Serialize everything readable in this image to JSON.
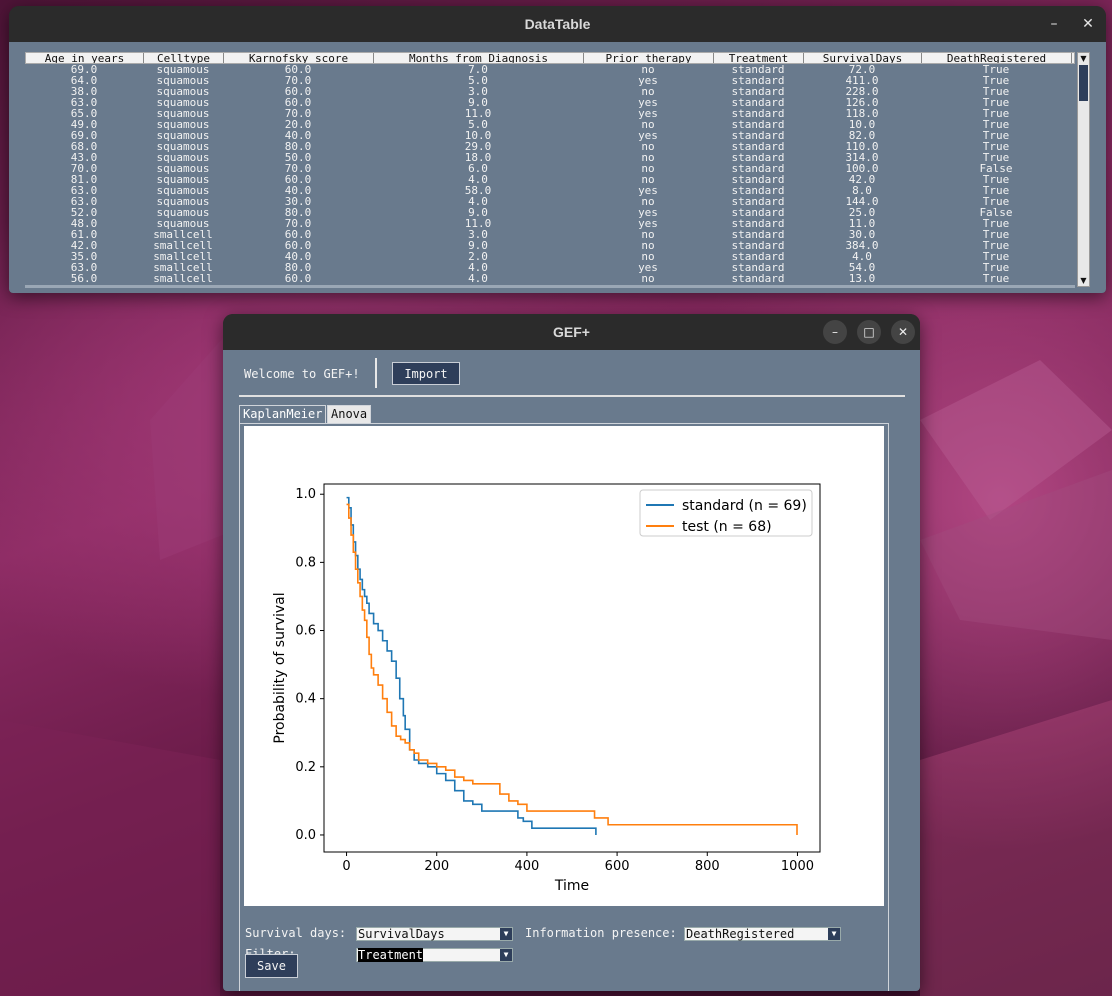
{
  "datatable_window": {
    "title": "DataTable",
    "minimize_label": "–",
    "close_label": "✕",
    "columns": [
      "Age_in_years",
      "Celltype",
      "Karnofsky_score",
      "Months_from_Diagnosis",
      "Prior_therapy",
      "Treatment",
      "SurvivalDays",
      "DeathRegistered"
    ],
    "rows": [
      [
        "69.0",
        "squamous",
        "60.0",
        "7.0",
        "no",
        "standard",
        "72.0",
        "True"
      ],
      [
        "64.0",
        "squamous",
        "70.0",
        "5.0",
        "yes",
        "standard",
        "411.0",
        "True"
      ],
      [
        "38.0",
        "squamous",
        "60.0",
        "3.0",
        "no",
        "standard",
        "228.0",
        "True"
      ],
      [
        "63.0",
        "squamous",
        "60.0",
        "9.0",
        "yes",
        "standard",
        "126.0",
        "True"
      ],
      [
        "65.0",
        "squamous",
        "70.0",
        "11.0",
        "yes",
        "standard",
        "118.0",
        "True"
      ],
      [
        "49.0",
        "squamous",
        "20.0",
        "5.0",
        "no",
        "standard",
        "10.0",
        "True"
      ],
      [
        "69.0",
        "squamous",
        "40.0",
        "10.0",
        "yes",
        "standard",
        "82.0",
        "True"
      ],
      [
        "68.0",
        "squamous",
        "80.0",
        "29.0",
        "no",
        "standard",
        "110.0",
        "True"
      ],
      [
        "43.0",
        "squamous",
        "50.0",
        "18.0",
        "no",
        "standard",
        "314.0",
        "True"
      ],
      [
        "70.0",
        "squamous",
        "70.0",
        "6.0",
        "no",
        "standard",
        "100.0",
        "False"
      ],
      [
        "81.0",
        "squamous",
        "60.0",
        "4.0",
        "no",
        "standard",
        "42.0",
        "True"
      ],
      [
        "63.0",
        "squamous",
        "40.0",
        "58.0",
        "yes",
        "standard",
        "8.0",
        "True"
      ],
      [
        "63.0",
        "squamous",
        "30.0",
        "4.0",
        "no",
        "standard",
        "144.0",
        "True"
      ],
      [
        "52.0",
        "squamous",
        "80.0",
        "9.0",
        "yes",
        "standard",
        "25.0",
        "False"
      ],
      [
        "48.0",
        "squamous",
        "70.0",
        "11.0",
        "yes",
        "standard",
        "11.0",
        "True"
      ],
      [
        "61.0",
        "smallcell",
        "60.0",
        "3.0",
        "no",
        "standard",
        "30.0",
        "True"
      ],
      [
        "42.0",
        "smallcell",
        "60.0",
        "9.0",
        "no",
        "standard",
        "384.0",
        "True"
      ],
      [
        "35.0",
        "smallcell",
        "40.0",
        "2.0",
        "no",
        "standard",
        "4.0",
        "True"
      ],
      [
        "63.0",
        "smallcell",
        "80.0",
        "4.0",
        "yes",
        "standard",
        "54.0",
        "True"
      ],
      [
        "56.0",
        "smallcell",
        "60.0",
        "4.0",
        "no",
        "standard",
        "13.0",
        "True"
      ]
    ]
  },
  "gef_window": {
    "title": "GEF+",
    "minimize_label": "–",
    "maximize_label": "□",
    "close_label": "✕",
    "welcome_text": "Welcome to GEF+!",
    "import_label": "Import",
    "tabs": [
      "KaplanMeier",
      "Anova"
    ],
    "survival_days_label": "Survival days:",
    "survival_days_value": "SurvivalDays",
    "info_presence_label": "Information presence:",
    "info_presence_value": "DeathRegistered",
    "filter_label": "Filter:",
    "filter_value": "Treatment",
    "save_label": "Save",
    "dropdown_icon": "▼"
  },
  "chart_data": {
    "type": "line",
    "title": "",
    "xlabel": "Time",
    "ylabel": "Probability of survival",
    "xlim": [
      -50,
      1050
    ],
    "ylim": [
      -0.05,
      1.03
    ],
    "xticks": [
      0,
      200,
      400,
      600,
      800,
      1000
    ],
    "yticks": [
      0.0,
      0.2,
      0.4,
      0.6,
      0.8,
      1.0
    ],
    "xtick_labels": [
      "0",
      "200",
      "400",
      "600",
      "800",
      "1000"
    ],
    "ytick_labels": [
      "0.0",
      "0.2",
      "0.4",
      "0.6",
      "0.8",
      "1.0"
    ],
    "legend_position": "top-right",
    "series": [
      {
        "name": "standard (n = 69)",
        "color": "#1f77b4",
        "step": true,
        "x": [
          0,
          5,
          10,
          15,
          20,
          25,
          30,
          35,
          40,
          45,
          50,
          60,
          70,
          80,
          90,
          100,
          110,
          118,
          126,
          130,
          140,
          150,
          160,
          180,
          200,
          220,
          240,
          260,
          280,
          300,
          340,
          380,
          392,
          411,
          450,
          500,
          553
        ],
        "y": [
          0.99,
          0.96,
          0.91,
          0.86,
          0.82,
          0.78,
          0.75,
          0.72,
          0.7,
          0.68,
          0.65,
          0.62,
          0.6,
          0.57,
          0.54,
          0.51,
          0.46,
          0.4,
          0.35,
          0.31,
          0.25,
          0.22,
          0.21,
          0.2,
          0.18,
          0.16,
          0.13,
          0.1,
          0.09,
          0.07,
          0.07,
          0.05,
          0.04,
          0.02,
          0.02,
          0.02,
          0.0
        ]
      },
      {
        "name": "test (n = 68)",
        "color": "#ff7f0e",
        "step": true,
        "x": [
          0,
          5,
          10,
          15,
          20,
          25,
          30,
          35,
          40,
          45,
          50,
          55,
          60,
          70,
          80,
          90,
          100,
          110,
          120,
          130,
          140,
          150,
          160,
          180,
          200,
          220,
          240,
          260,
          280,
          300,
          340,
          360,
          380,
          400,
          450,
          500,
          550,
          580,
          700,
          800,
          990,
          999
        ],
        "y": [
          0.97,
          0.93,
          0.88,
          0.83,
          0.78,
          0.74,
          0.7,
          0.66,
          0.63,
          0.58,
          0.53,
          0.49,
          0.47,
          0.44,
          0.4,
          0.36,
          0.32,
          0.29,
          0.28,
          0.27,
          0.25,
          0.24,
          0.22,
          0.21,
          0.2,
          0.19,
          0.17,
          0.16,
          0.15,
          0.15,
          0.12,
          0.1,
          0.09,
          0.07,
          0.07,
          0.07,
          0.05,
          0.03,
          0.03,
          0.03,
          0.03,
          0.0
        ]
      }
    ]
  }
}
